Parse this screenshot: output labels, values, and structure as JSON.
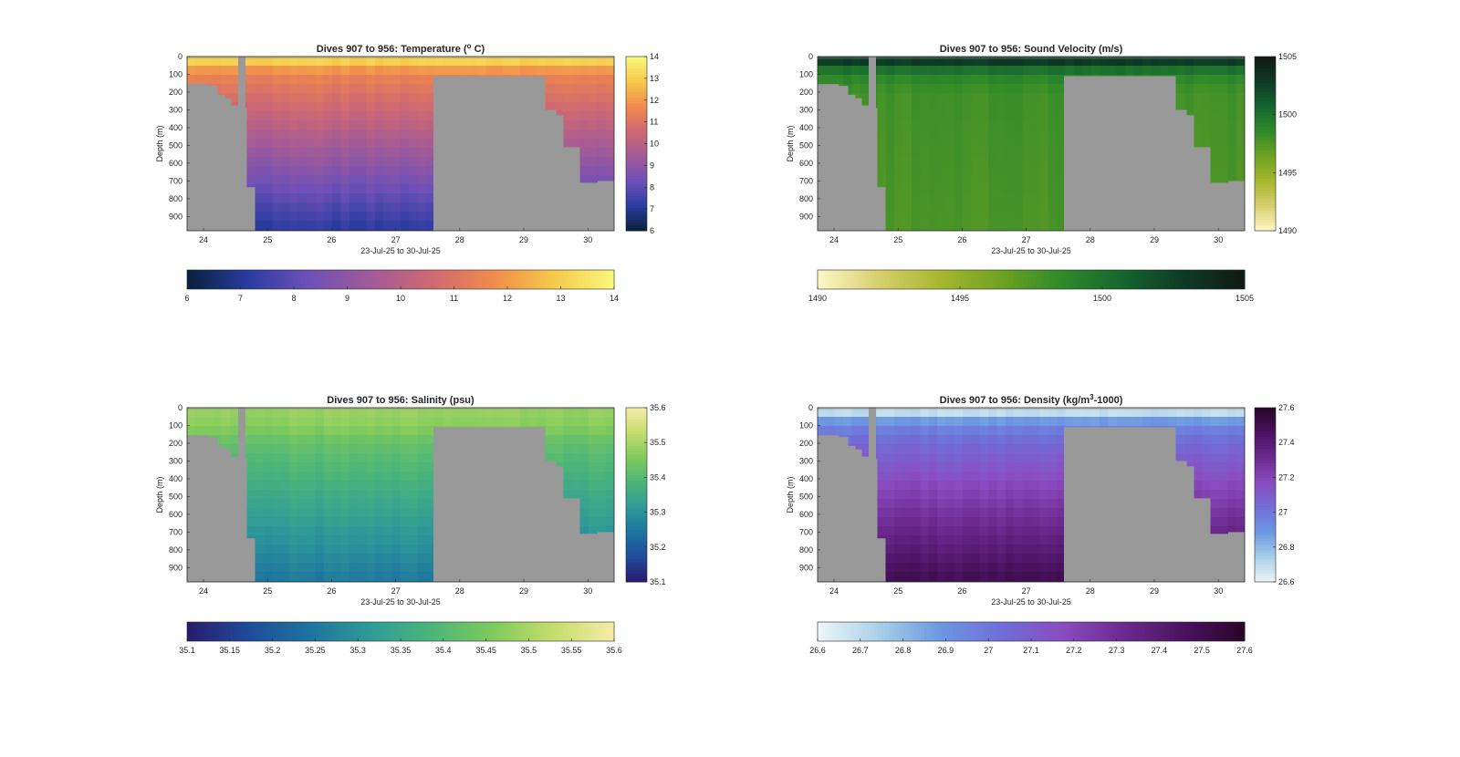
{
  "figure": {
    "background": "#ffffff",
    "mask_color": "#999999",
    "panel_frame_color": "#262626"
  },
  "chart_data": [
    {
      "id": "temperature",
      "type": "heatmap",
      "title_main": "Dives 907 to 956: Temperature (",
      "title_sup": "o",
      "title_end": " C)",
      "xlabel": "23-Jul-25 to 30-Jul-25",
      "ylabel": "Depth (m)",
      "xticks": [
        "24",
        "25",
        "26",
        "27",
        "28",
        "29",
        "30"
      ],
      "yticks": [
        "0",
        "100",
        "200",
        "300",
        "400",
        "500",
        "600",
        "700",
        "800",
        "900"
      ],
      "ylim": [
        0,
        980
      ],
      "clim": [
        6,
        14
      ],
      "colorbar_ticks": [
        "6",
        "7",
        "8",
        "9",
        "10",
        "11",
        "12",
        "13",
        "14"
      ],
      "hcolorbar_ticks": [
        "6",
        "7",
        "8",
        "9",
        "10",
        "11",
        "12",
        "13",
        "14"
      ],
      "colormap": [
        "#07203a",
        "#2a3ca0",
        "#6d50b8",
        "#a15a98",
        "#cf6872",
        "#f08a4c",
        "#f6c94a",
        "#f8f87c"
      ],
      "profile": {
        "surface": 13.3,
        "surface_layer_m": 40,
        "at100": 11.5,
        "at200": 11.0,
        "deep": 7.1,
        "deep_depth": 980
      }
    },
    {
      "id": "sound_velocity",
      "type": "heatmap",
      "title_main": "Dives 907 to 956: Sound Velocity (m/s)",
      "title_sup": "",
      "title_end": "",
      "xlabel": "23-Jul-25 to 30-Jul-25",
      "ylabel": "Depth (m)",
      "xticks": [
        "24",
        "25",
        "26",
        "27",
        "28",
        "29",
        "30"
      ],
      "yticks": [
        "0",
        "100",
        "200",
        "300",
        "400",
        "500",
        "600",
        "700",
        "800",
        "900"
      ],
      "ylim": [
        0,
        980
      ],
      "clim": [
        1490,
        1505
      ],
      "colorbar_ticks": [
        "1490",
        "1495",
        "1500",
        "1505"
      ],
      "hcolorbar_ticks": [
        "1490",
        "1495",
        "1500",
        "1505"
      ],
      "colormap": [
        "#fdf7c8",
        "#d8cf6e",
        "#a8b72e",
        "#6fa222",
        "#2f8a2a",
        "#15652e",
        "#0e3a25",
        "#101a14"
      ],
      "profile": {
        "surface": 1503.5,
        "surface_layer_m": 40,
        "at100": 1499.0,
        "at200": 1498.0,
        "deep": 1497.6,
        "deep_depth": 980
      }
    },
    {
      "id": "salinity",
      "type": "heatmap",
      "title_main": "Dives 907 to 956: Salinity (psu)",
      "title_sup": "",
      "title_end": "",
      "xlabel": "23-Jul-25 to 30-Jul-25",
      "ylabel": "Depth (m)",
      "xticks": [
        "24",
        "25",
        "26",
        "27",
        "28",
        "29",
        "30"
      ],
      "yticks": [
        "0",
        "100",
        "200",
        "300",
        "400",
        "500",
        "600",
        "700",
        "800",
        "900"
      ],
      "ylim": [
        0,
        980
      ],
      "clim": [
        35.1,
        35.6
      ],
      "colorbar_ticks": [
        "35.1",
        "35.2",
        "35.3",
        "35.4",
        "35.5",
        "35.6"
      ],
      "hcolorbar_ticks": [
        "35.1",
        "35.15",
        "35.2",
        "35.25",
        "35.3",
        "35.35",
        "35.4",
        "35.45",
        "35.5",
        "35.55",
        "35.6"
      ],
      "colormap": [
        "#2a1a6e",
        "#1f4b9a",
        "#1d73a0",
        "#2f9a98",
        "#4bb57a",
        "#7fca5c",
        "#c4dd6c",
        "#f6eca6"
      ],
      "profile": {
        "surface": 35.48,
        "surface_layer_m": 40,
        "at100": 35.47,
        "at200": 35.42,
        "deep": 35.25,
        "deep_depth": 980
      }
    },
    {
      "id": "density",
      "type": "heatmap",
      "title_main": "Dives 907 to 956: Density (kg/m",
      "title_sup": "3",
      "title_end": "-1000)",
      "xlabel": "23-Jul-25 to 30-Jul-25",
      "ylabel": "Depth (m)",
      "xticks": [
        "24",
        "25",
        "26",
        "27",
        "28",
        "29",
        "30"
      ],
      "yticks": [
        "0",
        "100",
        "200",
        "300",
        "400",
        "500",
        "600",
        "700",
        "800",
        "900"
      ],
      "ylim": [
        0,
        980
      ],
      "clim": [
        26.6,
        27.6
      ],
      "colorbar_ticks": [
        "26.6",
        "26.8",
        "27",
        "27.2",
        "27.4",
        "27.6"
      ],
      "hcolorbar_ticks": [
        "26.6",
        "26.7",
        "26.8",
        "26.9",
        "27",
        "27.1",
        "27.2",
        "27.3",
        "27.4",
        "27.5",
        "27.6"
      ],
      "colormap": [
        "#eef6f8",
        "#a9d0e8",
        "#6c98e2",
        "#6f6fd8",
        "#8a4cc0",
        "#6c2a90",
        "#4a1260",
        "#2b0428"
      ],
      "profile": {
        "surface": 26.65,
        "surface_layer_m": 40,
        "at100": 26.95,
        "at200": 27.05,
        "deep": 27.5,
        "deep_depth": 980
      }
    }
  ]
}
